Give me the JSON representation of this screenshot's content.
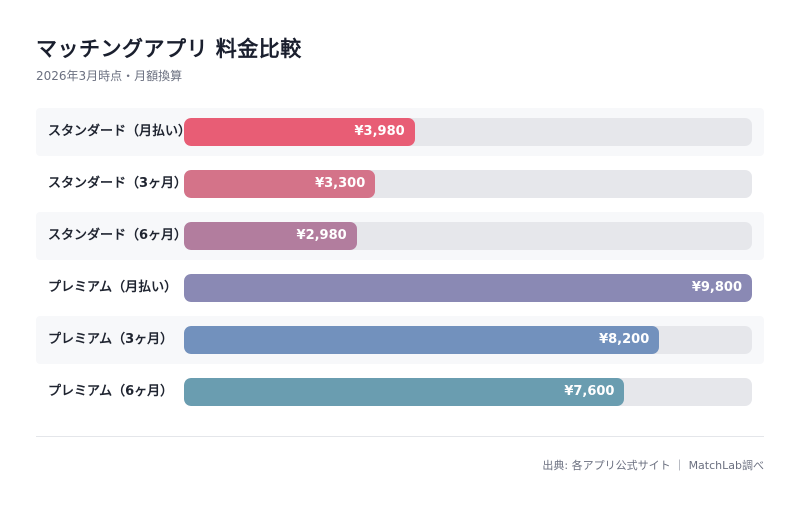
{
  "chart_data": {
    "type": "bar",
    "orientation": "horizontal",
    "title": "マッチングアプリ 料金比較",
    "subtitle": "2026年3月時点・月額換算",
    "categories": [
      "スタンダード（月払い）",
      "スタンダード（3ヶ月）",
      "スタンダード（6ヶ月）",
      "プレミアム（月払い）",
      "プレミアム（3ヶ月）",
      "プレミアム（6ヶ月）"
    ],
    "values": [
      3980,
      3300,
      2980,
      9800,
      8200,
      7600
    ],
    "value_labels": [
      "¥3,980",
      "¥3,300",
      "¥2,980",
      "¥9,800",
      "¥8,200",
      "¥7,600"
    ],
    "colors": [
      "#e85d75",
      "#d47389",
      "#b27d9e",
      "#8a89b4",
      "#7291bd",
      "#6a9db0"
    ],
    "xlim": [
      0,
      9800
    ],
    "grid": false,
    "legend": "none"
  },
  "footer": {
    "source": "出典: 各アプリ公式サイト ｜ MatchLab調べ"
  }
}
